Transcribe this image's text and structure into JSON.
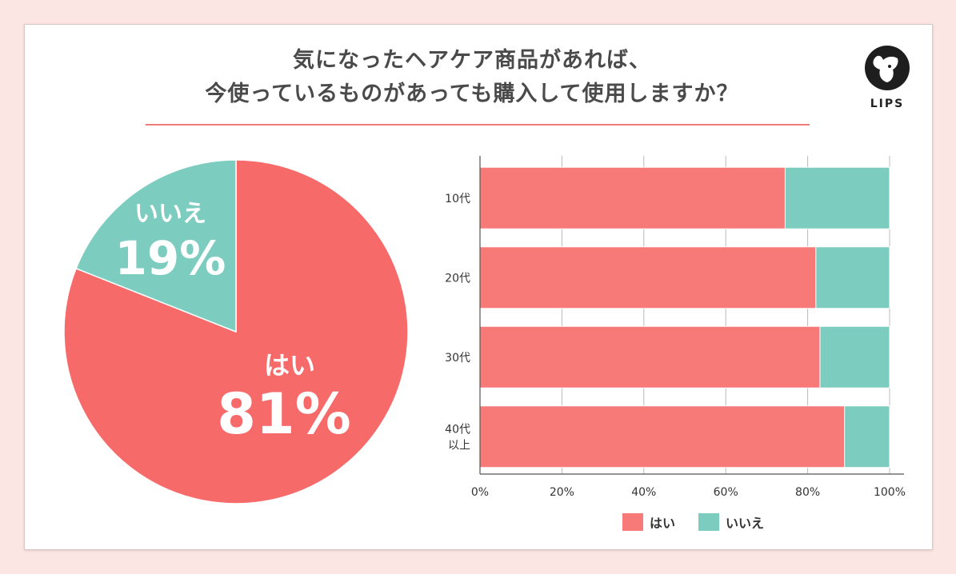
{
  "title": {
    "line1": "気になったヘアケア商品があれば、",
    "line2": "今使っているものがあっても購入して使用しますか？"
  },
  "brand": {
    "name": "LIPS"
  },
  "colors": {
    "yes": "#f76a6a",
    "yes_bar": "#f77a78",
    "no": "#7ccdc0",
    "accent": "#f07b78"
  },
  "chart_data": [
    {
      "type": "pie",
      "title": "",
      "slices": [
        {
          "label": "はい",
          "value": 81,
          "display": "81%"
        },
        {
          "label": "いいえ",
          "value": 19,
          "display": "19%"
        }
      ]
    },
    {
      "type": "bar",
      "orientation": "horizontal",
      "stacked": true,
      "categories": [
        "10代",
        "20代",
        "30代",
        "40代以上"
      ],
      "category_lines": [
        [
          "10代"
        ],
        [
          "20代"
        ],
        [
          "30代"
        ],
        [
          "40代",
          "以上"
        ]
      ],
      "series": [
        {
          "name": "はい",
          "values": [
            74.5,
            82,
            83,
            89
          ]
        },
        {
          "name": "いいえ",
          "values": [
            25.5,
            18,
            17,
            11
          ]
        }
      ],
      "xlim": [
        0,
        100
      ],
      "xticks": [
        "0%",
        "20%",
        "40%",
        "60%",
        "80%",
        "100%"
      ],
      "grid": true,
      "legend_position": "bottom",
      "legend": [
        "はい",
        "いいえ"
      ]
    }
  ]
}
